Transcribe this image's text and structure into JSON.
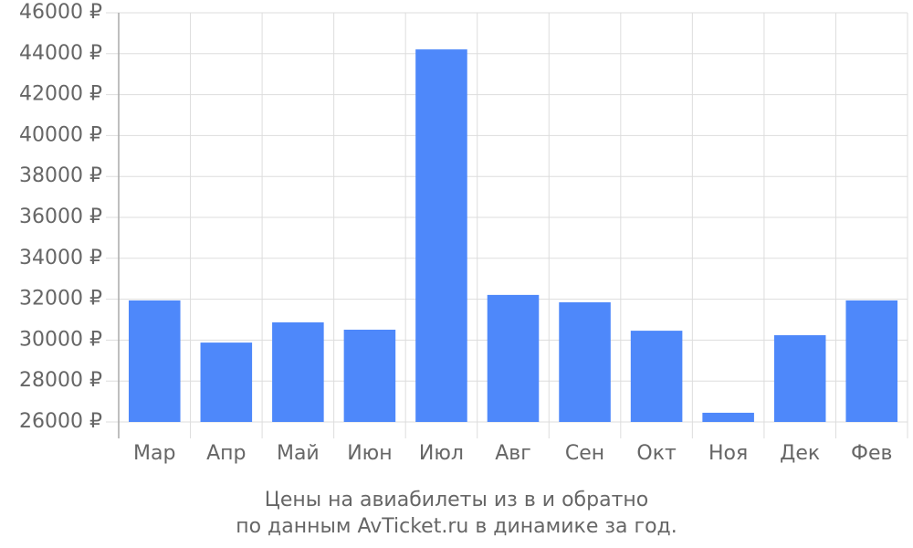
{
  "chart_data": {
    "type": "bar",
    "caption": [
      "Цены на авиабилеты из  в  и обратно",
      "по данным AvTicket.ru в динамике за год."
    ],
    "categories": [
      "Мар",
      "Апр",
      "Май",
      "Июн",
      "Июл",
      "Авг",
      "Сен",
      "Окт",
      "Ноя",
      "Дек",
      "Фев"
    ],
    "values": [
      31940,
      29880,
      30870,
      30510,
      44210,
      32210,
      31850,
      30460,
      26450,
      30240,
      31940
    ],
    "color": "#4e88fa",
    "ylim": [
      26000,
      46000
    ],
    "yticks": [
      {
        "value": 26000,
        "label": "26000 ₽"
      },
      {
        "value": 28000,
        "label": "28000 ₽"
      },
      {
        "value": 30000,
        "label": "30000 ₽"
      },
      {
        "value": 32000,
        "label": "32000 ₽"
      },
      {
        "value": 34000,
        "label": "34000 ₽"
      },
      {
        "value": 36000,
        "label": "36000 ₽"
      },
      {
        "value": 38000,
        "label": "38000 ₽"
      },
      {
        "value": 40000,
        "label": "40000 ₽"
      },
      {
        "value": 42000,
        "label": "42000 ₽"
      },
      {
        "value": 44000,
        "label": "44000 ₽"
      },
      {
        "value": 46000,
        "label": "46000 ₽"
      }
    ],
    "grid": true
  }
}
